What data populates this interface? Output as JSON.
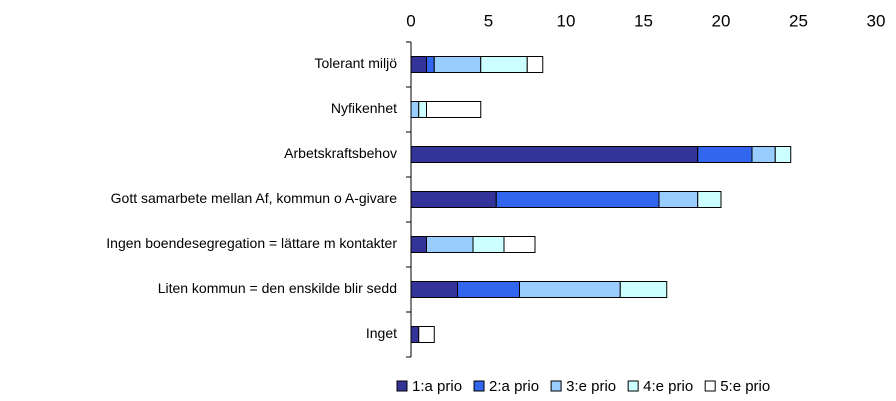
{
  "chart_data": {
    "type": "stacked_bar_horizontal",
    "categories": [
      "Tolerant miljö",
      "Nyfikenhet",
      "Arbetskraftsbehov",
      "Gott samarbete mellan Af, kommun o A-givare",
      "Ingen boendesegregation = lättare m kontakter",
      "Liten kommun = den enskilde blir sedd",
      "Inget"
    ],
    "series": [
      {
        "name": "1:a prio",
        "color": "#333399",
        "values": [
          1.0,
          0,
          18.5,
          5.5,
          1.0,
          3.0,
          0.5
        ]
      },
      {
        "name": "2:a prio",
        "color": "#3366ee",
        "values": [
          0.5,
          0,
          3.5,
          10.5,
          0,
          4.0,
          0
        ]
      },
      {
        "name": "3:e prio",
        "color": "#99ccff",
        "values": [
          3.0,
          0.5,
          1.5,
          2.5,
          3.0,
          6.5,
          0
        ]
      },
      {
        "name": "4:e prio",
        "color": "#ccffff",
        "values": [
          3.0,
          0.5,
          1.0,
          1.5,
          2.0,
          3.0,
          0
        ]
      },
      {
        "name": "5:e prio",
        "color": "#ffffff",
        "values": [
          1.0,
          3.5,
          0,
          0,
          2.0,
          0,
          1.0
        ]
      }
    ],
    "xlim": [
      0,
      30
    ],
    "xticks": [
      0,
      5,
      10,
      15,
      20,
      25,
      30
    ],
    "legend": "bottom"
  }
}
